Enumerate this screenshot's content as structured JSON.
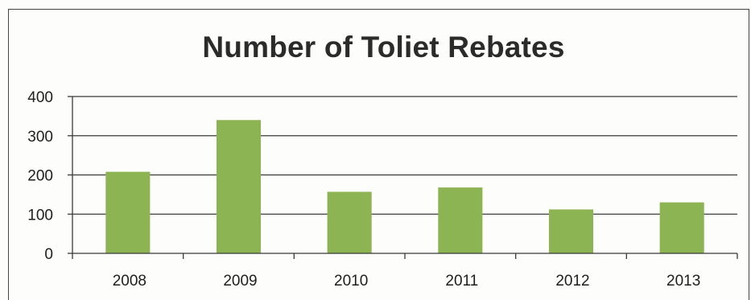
{
  "chart_data": {
    "type": "bar",
    "title": "Number of Toliet Rebates",
    "xlabel": "",
    "ylabel": "",
    "categories": [
      "2008",
      "2009",
      "2010",
      "2011",
      "2012",
      "2013"
    ],
    "values": [
      208,
      340,
      157,
      168,
      112,
      130
    ],
    "ylim": [
      0,
      400
    ],
    "yticks": [
      0,
      100,
      200,
      300,
      400
    ],
    "grid": true,
    "legend": "none",
    "bar_color": "#8db453",
    "grid_color": "#3a3a3a"
  }
}
